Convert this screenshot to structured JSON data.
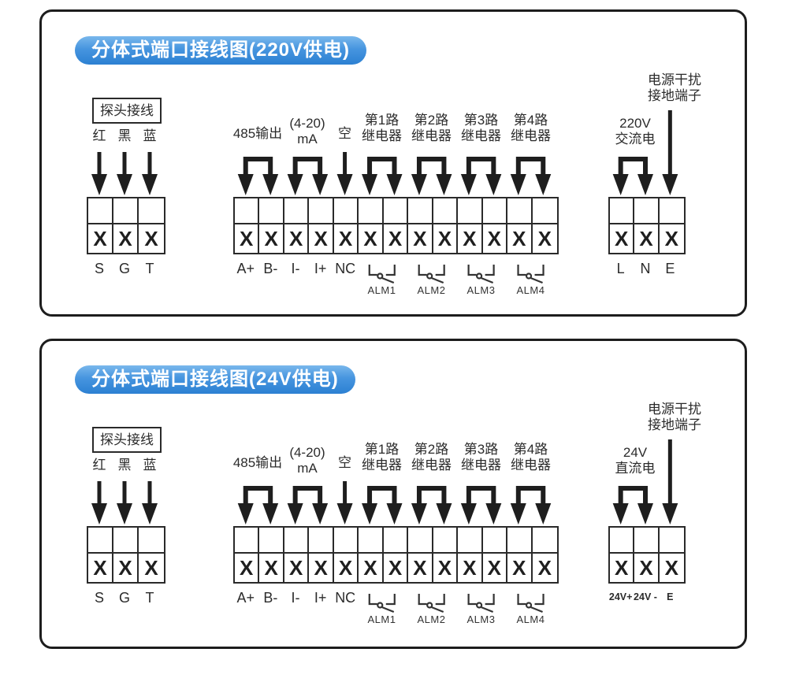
{
  "page": {
    "background": "#ffffff"
  },
  "colors": {
    "badge_blue_top": "#79b7ec",
    "badge_blue_bottom": "#2c80d2",
    "badge_text": "#ffffff",
    "line_color": "#1e1e1e",
    "text_color": "#2b2b2b"
  },
  "panels": [
    {
      "title": "分体式端口接线图(220V供电)",
      "probe": {
        "box_label": "探头接线",
        "wire_colors": [
          "红",
          "黑",
          "蓝"
        ],
        "terminal_marks": [
          "X",
          "X",
          "X"
        ],
        "terminal_labels": [
          "S",
          "G",
          "T"
        ]
      },
      "main": {
        "rs485_label": "485输出",
        "ma_label": "(4-20)\nmA",
        "empty_label": "空",
        "relay_labels": [
          "第1路\n继电器",
          "第2路\n继电器",
          "第3路\n继电器",
          "第4路\n继电器"
        ],
        "terminal_marks": [
          "X",
          "X",
          "X",
          "X",
          "X",
          "X",
          "X",
          "X",
          "X",
          "X",
          "X",
          "X",
          "X"
        ],
        "terminal_labels": [
          "A+",
          "B-",
          "I-",
          "I+",
          "NC"
        ],
        "alarm_labels": [
          "ALM1",
          "ALM2",
          "ALM3",
          "ALM4"
        ]
      },
      "power": {
        "ground_label": "电源干扰\n接地端子",
        "supply_label": "220V\n交流电",
        "terminal_marks": [
          "X",
          "X",
          "X"
        ],
        "terminal_labels": [
          "L",
          "N",
          "E"
        ]
      }
    },
    {
      "title": "分体式端口接线图(24V供电)",
      "probe": {
        "box_label": "探头接线",
        "wire_colors": [
          "红",
          "黑",
          "蓝"
        ],
        "terminal_marks": [
          "X",
          "X",
          "X"
        ],
        "terminal_labels": [
          "S",
          "G",
          "T"
        ]
      },
      "main": {
        "rs485_label": "485输出",
        "ma_label": "(4-20)\nmA",
        "empty_label": "空",
        "relay_labels": [
          "第1路\n继电器",
          "第2路\n继电器",
          "第3路\n继电器",
          "第4路\n继电器"
        ],
        "terminal_marks": [
          "X",
          "X",
          "X",
          "X",
          "X",
          "X",
          "X",
          "X",
          "X",
          "X",
          "X",
          "X",
          "X"
        ],
        "terminal_labels": [
          "A+",
          "B-",
          "I-",
          "I+",
          "NC"
        ],
        "alarm_labels": [
          "ALM1",
          "ALM2",
          "ALM3",
          "ALM4"
        ]
      },
      "power": {
        "ground_label": "电源干扰\n接地端子",
        "supply_label": "24V\n直流电",
        "terminal_marks": [
          "X",
          "X",
          "X"
        ],
        "terminal_labels": [
          "24V+",
          "24V -",
          "E"
        ]
      }
    }
  ]
}
